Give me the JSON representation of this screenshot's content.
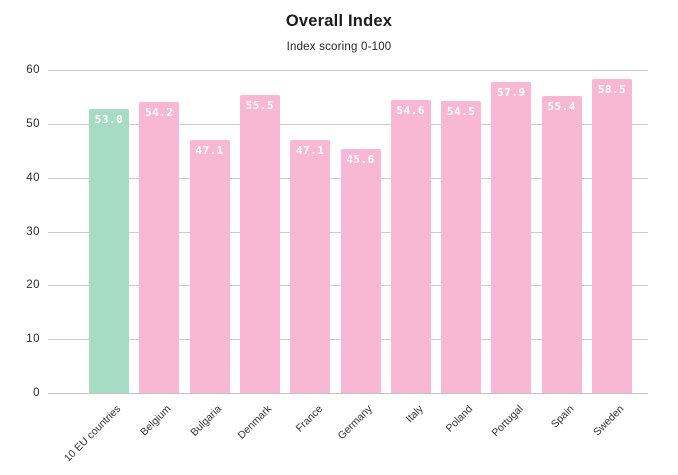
{
  "chart_data": {
    "type": "bar",
    "title": "Overall Index",
    "subtitle": "Index scoring 0-100",
    "categories": [
      "10 EU countries",
      "Belgium",
      "Bulgaria",
      "Denmark",
      "France",
      "Germany",
      "Italy",
      "Poland",
      "Portugal",
      "Spain",
      "Sweden"
    ],
    "values": [
      53.0,
      54.2,
      47.1,
      55.5,
      47.1,
      45.6,
      54.6,
      54.5,
      57.9,
      55.4,
      58.5
    ],
    "highlight_index": 0,
    "yticks": [
      0,
      10,
      20,
      30,
      40,
      50,
      60
    ],
    "ylim": [
      0,
      60
    ],
    "grid": true,
    "legend_position": "none",
    "colors": {
      "bar": "#f8b7d2",
      "highlight_bar": "#a5dcc3",
      "value_label": "#ffffff",
      "gridline": "#cccccc",
      "axis_text": "#2e2e2e"
    }
  }
}
